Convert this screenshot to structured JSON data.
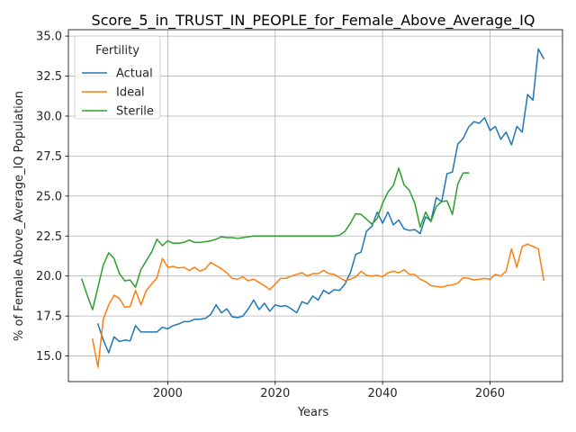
{
  "chart_data": {
    "type": "line",
    "title": "Score_5_in_TRUST_IN_PEOPLE_for_Female_Above_Average_IQ",
    "xlabel": "Years",
    "ylabel": "% of Female Above_Average_IQ Population",
    "xlim": [
      1981.5,
      2073.5
    ],
    "ylim": [
      13.4,
      35.4
    ],
    "xticks": [
      2000,
      2020,
      2040,
      2060
    ],
    "yticks": [
      15.0,
      17.5,
      20.0,
      22.5,
      25.0,
      27.5,
      30.0,
      32.5,
      35.0
    ],
    "ytick_labels": [
      "15.0",
      "17.5",
      "20.0",
      "22.5",
      "25.0",
      "27.5",
      "30.0",
      "32.5",
      "35.0"
    ],
    "grid": true,
    "legend": {
      "title": "Fertility",
      "position": "top-left"
    },
    "series": [
      {
        "name": "Actual",
        "color": "#1f77b4",
        "x": [
          1987,
          1988,
          1989,
          1990,
          1991,
          1992,
          1993,
          1994,
          1995,
          1996,
          1997,
          1998,
          1999,
          2000,
          2001,
          2002,
          2003,
          2004,
          2005,
          2006,
          2007,
          2008,
          2009,
          2010,
          2011,
          2012,
          2013,
          2014,
          2015,
          2016,
          2017,
          2018,
          2019,
          2020,
          2021,
          2022,
          2023,
          2024,
          2025,
          2026,
          2027,
          2028,
          2029,
          2030,
          2031,
          2032,
          2033,
          2034,
          2035,
          2036,
          2037,
          2038,
          2039,
          2040,
          2041,
          2042,
          2043,
          2044,
          2045,
          2046,
          2047,
          2048,
          2049,
          2050,
          2051,
          2052,
          2053,
          2054,
          2055,
          2056,
          2057,
          2058,
          2059,
          2060,
          2061,
          2062,
          2063,
          2064,
          2065,
          2066,
          2067,
          2068,
          2069,
          2070
        ],
        "values": [
          17.0,
          16.0,
          15.2,
          16.2,
          15.9,
          16.0,
          15.95,
          16.9,
          16.5,
          16.5,
          16.5,
          16.5,
          16.8,
          16.7,
          16.9,
          17.0,
          17.15,
          17.15,
          17.3,
          17.3,
          17.35,
          17.6,
          18.2,
          17.7,
          17.95,
          17.45,
          17.4,
          17.5,
          17.95,
          18.5,
          17.9,
          18.3,
          17.8,
          18.2,
          18.1,
          18.15,
          17.95,
          17.7,
          18.4,
          18.25,
          18.75,
          18.5,
          19.1,
          18.9,
          19.15,
          19.1,
          19.5,
          20.2,
          21.35,
          21.5,
          22.8,
          23.1,
          24.0,
          23.3,
          24.0,
          23.2,
          23.5,
          22.95,
          22.85,
          22.9,
          22.65,
          23.7,
          23.45,
          24.9,
          24.65,
          26.4,
          26.5,
          28.25,
          28.6,
          29.3,
          29.65,
          29.55,
          29.9,
          29.1,
          29.35,
          28.55,
          29.0,
          28.2,
          29.35,
          29.0,
          31.35,
          31.0,
          34.2,
          33.6
        ]
      },
      {
        "name": "Ideal",
        "color": "#ff7f0e",
        "x": [
          1986,
          1987,
          1988,
          1989,
          1990,
          1991,
          1992,
          1993,
          1994,
          1995,
          1996,
          1997,
          1998,
          1999,
          2000,
          2001,
          2002,
          2003,
          2004,
          2005,
          2006,
          2007,
          2008,
          2009,
          2010,
          2011,
          2012,
          2013,
          2014,
          2015,
          2016,
          2017,
          2018,
          2019,
          2020,
          2021,
          2022,
          2023,
          2024,
          2025,
          2026,
          2027,
          2028,
          2029,
          2030,
          2031,
          2032,
          2033,
          2034,
          2035,
          2036,
          2037,
          2038,
          2039,
          2040,
          2041,
          2042,
          2043,
          2044,
          2045,
          2046,
          2047,
          2048,
          2049,
          2050,
          2051,
          2052,
          2053,
          2054,
          2055,
          2056,
          2057,
          2058,
          2059,
          2060,
          2061,
          2062,
          2063,
          2064,
          2065,
          2066,
          2067,
          2068,
          2069,
          2070
        ],
        "values": [
          16.05,
          14.3,
          17.3,
          18.2,
          18.8,
          18.6,
          18.05,
          18.1,
          19.1,
          18.2,
          19.1,
          19.5,
          19.9,
          21.1,
          20.55,
          20.6,
          20.5,
          20.55,
          20.35,
          20.55,
          20.3,
          20.45,
          20.85,
          20.65,
          20.45,
          20.2,
          19.85,
          19.8,
          19.95,
          19.7,
          19.8,
          19.6,
          19.4,
          19.15,
          19.5,
          19.85,
          19.85,
          20.0,
          20.1,
          20.2,
          20.0,
          20.15,
          20.15,
          20.35,
          20.15,
          20.1,
          19.9,
          19.7,
          19.8,
          19.95,
          20.3,
          20.05,
          20.0,
          20.05,
          19.95,
          20.2,
          20.3,
          20.2,
          20.4,
          20.1,
          20.1,
          19.8,
          19.65,
          19.4,
          19.35,
          19.3,
          19.4,
          19.45,
          19.55,
          19.9,
          19.85,
          19.75,
          19.8,
          19.85,
          19.8,
          20.1,
          20.0,
          20.3,
          21.7,
          20.55,
          21.85,
          22.0,
          21.85,
          21.7,
          19.75
        ]
      },
      {
        "name": "Sterile",
        "color": "#2ca02c",
        "x": [
          1984,
          1985,
          1986,
          1987,
          1988,
          1989,
          1990,
          1991,
          1992,
          1993,
          1994,
          1995,
          1996,
          1997,
          1998,
          1999,
          2000,
          2001,
          2002,
          2003,
          2004,
          2005,
          2006,
          2007,
          2008,
          2009,
          2010,
          2011,
          2012,
          2013,
          2014,
          2015,
          2016,
          2017,
          2018,
          2019,
          2020,
          2021,
          2022,
          2023,
          2024,
          2025,
          2026,
          2027,
          2028,
          2029,
          2030,
          2031,
          2032,
          2033,
          2034,
          2035,
          2036,
          2037,
          2038,
          2039,
          2040,
          2041,
          2042,
          2043,
          2044,
          2045,
          2046,
          2047,
          2048,
          2049,
          2050,
          2051,
          2052,
          2053,
          2054,
          2055,
          2056
        ],
        "values": [
          19.8,
          18.8,
          17.9,
          19.3,
          20.7,
          21.45,
          21.1,
          20.15,
          19.7,
          19.75,
          19.3,
          20.4,
          20.95,
          21.5,
          22.3,
          21.9,
          22.2,
          22.05,
          22.05,
          22.1,
          22.25,
          22.1,
          22.1,
          22.15,
          22.2,
          22.3,
          22.45,
          22.4,
          22.4,
          22.35,
          22.4,
          22.45,
          22.5,
          22.5,
          22.5,
          22.5,
          22.5,
          22.5,
          22.5,
          22.5,
          22.5,
          22.5,
          22.5,
          22.5,
          22.5,
          22.5,
          22.5,
          22.5,
          22.55,
          22.8,
          23.3,
          23.9,
          23.85,
          23.55,
          23.25,
          23.6,
          24.55,
          25.25,
          25.65,
          26.75,
          25.7,
          25.35,
          24.55,
          23.05,
          24.0,
          23.4,
          24.35,
          24.65,
          24.7,
          23.85,
          25.75,
          26.45,
          26.45
        ]
      }
    ]
  }
}
